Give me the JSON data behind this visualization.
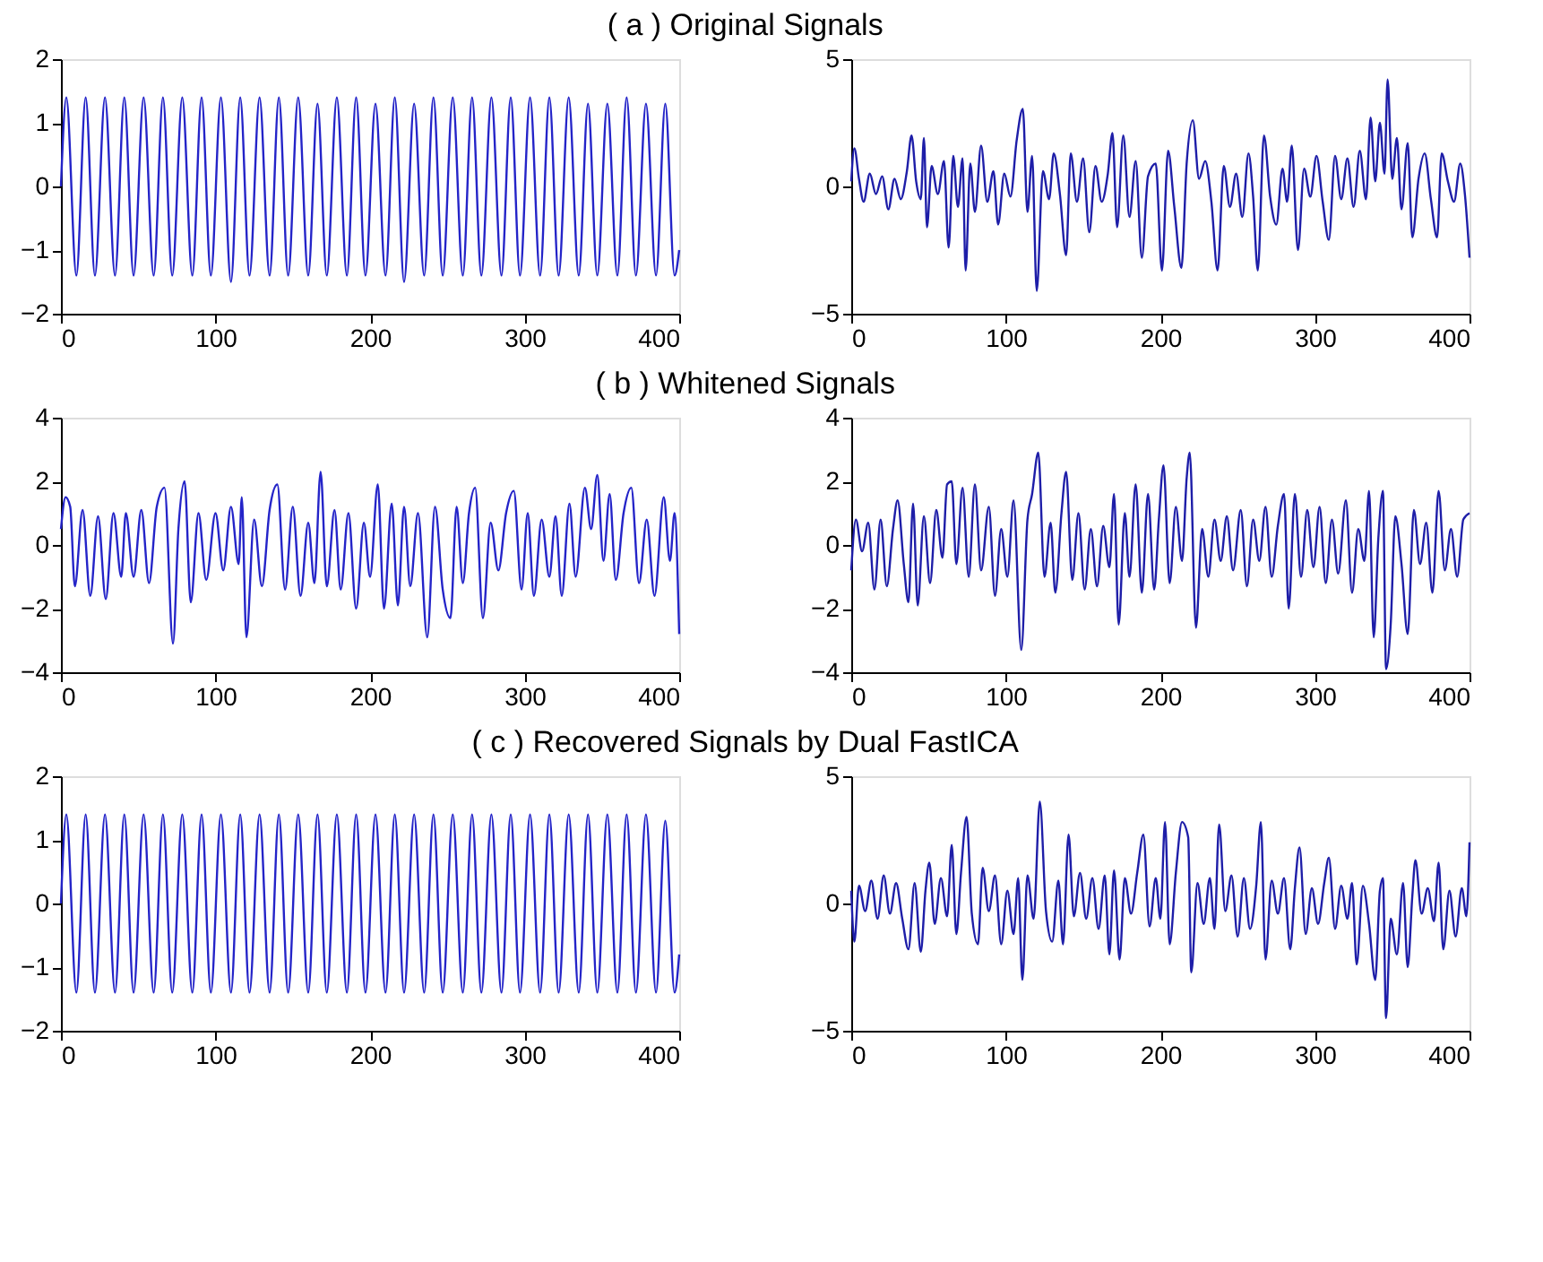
{
  "chart_data": [
    {
      "type": "line",
      "title": "( a ) Original Signals",
      "color": "#2424c8",
      "xlim": [
        0,
        400
      ],
      "ylim": [
        -2,
        2
      ],
      "xticks": [
        0,
        100,
        200,
        300,
        400
      ],
      "yticks": [
        -2,
        -1,
        0,
        1,
        2
      ],
      "x": [
        0,
        3.5,
        10,
        16,
        22,
        28.5,
        35,
        41,
        47,
        53.5,
        60,
        66,
        72,
        78.5,
        85,
        91,
        97,
        103.5,
        110,
        116,
        122,
        128.5,
        135,
        141,
        147,
        153.5,
        160,
        166,
        172,
        178.5,
        185,
        191,
        197,
        203.5,
        210,
        216,
        222,
        228.5,
        235,
        241,
        247,
        253.5,
        260,
        266,
        272,
        278.5,
        285,
        291,
        297,
        303.5,
        310,
        316,
        322,
        328.5,
        335,
        341,
        347,
        353.5,
        360,
        366,
        372,
        378.5,
        385,
        391,
        397,
        400
      ],
      "values": [
        0,
        1.4,
        -1.4,
        1.4,
        -1.4,
        1.4,
        -1.4,
        1.4,
        -1.4,
        1.4,
        -1.4,
        1.4,
        -1.4,
        1.4,
        -1.4,
        1.4,
        -1.4,
        1.4,
        -1.5,
        1.4,
        -1.4,
        1.4,
        -1.4,
        1.4,
        -1.4,
        1.4,
        -1.4,
        1.3,
        -1.4,
        1.4,
        -1.4,
        1.4,
        -1.4,
        1.3,
        -1.4,
        1.4,
        -1.5,
        1.3,
        -1.4,
        1.4,
        -1.4,
        1.4,
        -1.4,
        1.4,
        -1.4,
        1.4,
        -1.4,
        1.4,
        -1.4,
        1.4,
        -1.4,
        1.4,
        -1.4,
        1.4,
        -1.4,
        1.3,
        -1.4,
        1.3,
        -1.4,
        1.4,
        -1.4,
        1.3,
        -1.4,
        1.3,
        -1.4,
        -1.0
      ]
    },
    {
      "type": "line",
      "color": "#1e1ea8",
      "xlim": [
        0,
        400
      ],
      "ylim": [
        -5,
        5
      ],
      "xticks": [
        0,
        100,
        200,
        300,
        400
      ],
      "yticks": [
        -5,
        0,
        5
      ],
      "x": [
        0,
        2,
        5,
        8,
        12,
        16,
        20,
        24,
        28,
        32,
        36,
        39,
        42,
        45,
        47,
        49,
        52,
        56,
        60,
        63,
        66,
        69,
        72,
        74,
        77,
        80,
        84,
        88,
        92,
        95,
        99,
        103,
        107,
        111,
        114,
        117,
        120,
        124,
        128,
        131,
        135,
        139,
        142,
        146,
        150,
        154,
        158,
        162,
        166,
        169,
        172,
        176,
        180,
        184,
        188,
        192,
        197,
        201,
        205,
        209,
        213.6,
        217,
        221,
        225,
        229,
        233,
        237,
        241,
        245,
        249,
        253,
        257,
        260,
        263,
        267,
        271,
        275,
        279,
        282,
        285,
        289,
        293,
        297,
        301,
        305,
        309,
        313,
        317,
        321,
        325,
        329,
        333,
        336,
        339,
        342,
        345,
        347,
        350,
        353,
        356,
        360,
        363,
        367,
        371,
        375,
        379,
        382,
        386,
        390,
        394,
        397,
        400
      ],
      "values": [
        0.2,
        1.5,
        0.3,
        -0.6,
        0.5,
        -0.3,
        0.4,
        -0.9,
        0.3,
        -0.5,
        0.6,
        2.0,
        0.2,
        -0.5,
        1.9,
        -1.6,
        0.8,
        -0.3,
        1.0,
        -2.4,
        1.2,
        -0.8,
        1.1,
        -3.3,
        0.9,
        -1.0,
        1.6,
        -0.6,
        0.6,
        -1.5,
        0.5,
        -0.4,
        1.8,
        3.05,
        -1.0,
        1.2,
        -4.1,
        0.6,
        -0.5,
        1.3,
        -0.3,
        -2.7,
        1.3,
        -0.6,
        1.1,
        -1.8,
        0.8,
        -0.6,
        0.5,
        2.1,
        -1.6,
        2.0,
        -1.2,
        1.0,
        -2.8,
        0.4,
        0.9,
        -3.3,
        1.4,
        -0.8,
        -3.2,
        0.9,
        2.6,
        0.3,
        1.0,
        -0.6,
        -3.3,
        0.8,
        -0.8,
        0.5,
        -1.2,
        1.3,
        -0.4,
        -3.3,
        2.0,
        -0.4,
        -1.5,
        0.7,
        -0.6,
        1.6,
        -2.5,
        0.7,
        -0.4,
        1.2,
        -0.6,
        -2.1,
        1.2,
        -0.5,
        1.1,
        -0.8,
        1.4,
        -0.5,
        2.7,
        0.2,
        2.5,
        0.5,
        4.2,
        0.3,
        1.9,
        -0.9,
        1.7,
        -2.0,
        0.3,
        1.3,
        -0.5,
        -2.0,
        1.3,
        0.2,
        -0.6,
        0.9,
        -0.3,
        -2.8
      ]
    },
    {
      "type": "line",
      "title": "( b ) Whitened Signals",
      "color": "#2424c8",
      "xlim": [
        0,
        400
      ],
      "ylim": [
        -4,
        4
      ],
      "xticks": [
        0,
        100,
        200,
        300,
        400
      ],
      "yticks": [
        -4,
        -2,
        0,
        2,
        4
      ],
      "x": [
        0,
        3,
        6,
        9,
        14,
        19,
        24,
        29,
        34,
        39,
        42,
        47,
        52,
        57,
        62,
        67,
        72.5,
        76,
        80,
        84,
        89,
        94,
        100,
        105,
        110,
        115,
        117,
        120,
        125,
        130,
        135,
        140,
        145,
        150,
        155,
        160,
        164,
        168,
        172,
        177,
        181,
        186,
        191,
        196,
        200,
        205,
        209,
        214,
        218,
        222,
        226,
        231,
        237,
        242,
        247,
        252,
        256,
        260,
        264,
        268,
        273,
        278,
        283,
        288,
        293,
        298,
        302,
        306,
        311,
        316,
        320,
        324,
        329,
        333,
        339,
        343,
        347,
        351,
        355,
        359,
        364,
        369,
        374,
        379,
        384,
        390,
        394,
        397,
        400
      ],
      "values": [
        0.5,
        1.5,
        1.2,
        -1.3,
        1.1,
        -1.6,
        0.9,
        -1.7,
        1.0,
        -1.0,
        1.0,
        -1.0,
        1.1,
        -1.2,
        1.2,
        1.8,
        -3.1,
        0.5,
        2.0,
        -1.8,
        1.0,
        -1.1,
        1.0,
        -0.8,
        1.2,
        -0.6,
        1.5,
        -2.9,
        0.8,
        -1.3,
        1.1,
        1.9,
        -1.4,
        1.2,
        -1.6,
        0.7,
        -1.2,
        2.3,
        -1.3,
        1.1,
        -1.4,
        1.0,
        -2.0,
        0.7,
        -1.0,
        1.9,
        -2.0,
        1.3,
        -1.9,
        1.2,
        -1.3,
        1.0,
        -2.9,
        1.2,
        -1.4,
        -2.3,
        1.2,
        -1.2,
        1.0,
        1.8,
        -2.3,
        0.7,
        -0.8,
        1.0,
        1.7,
        -1.4,
        1.0,
        -1.6,
        0.8,
        -1.0,
        0.9,
        -1.6,
        1.3,
        -1.0,
        1.8,
        0.5,
        2.2,
        -0.5,
        1.6,
        -1.1,
        1.0,
        1.8,
        -1.2,
        0.8,
        -1.6,
        1.5,
        -0.5,
        1.0,
        -2.8
      ]
    },
    {
      "type": "line",
      "color": "#1e1ea8",
      "xlim": [
        0,
        400
      ],
      "ylim": [
        -4,
        4
      ],
      "xticks": [
        0,
        100,
        200,
        300,
        400
      ],
      "yticks": [
        -4,
        -2,
        0,
        2,
        4
      ],
      "x": [
        0,
        3,
        7,
        11,
        15,
        19,
        23,
        27,
        30,
        34,
        37,
        40,
        43,
        47,
        51,
        55,
        59,
        62,
        65,
        68,
        72,
        76,
        80,
        84,
        89,
        93,
        97,
        101,
        105,
        110,
        114,
        117,
        121,
        125,
        129,
        132,
        136,
        139,
        143,
        147,
        151,
        155,
        159,
        163,
        167,
        170,
        173,
        177,
        180,
        184,
        188,
        192,
        196,
        199,
        202,
        206,
        210,
        214,
        217,
        219,
        223,
        227,
        231,
        235,
        239,
        243,
        247,
        252,
        256,
        260,
        264,
        268,
        272,
        276,
        280,
        283,
        287,
        291,
        295,
        299,
        303,
        307,
        311,
        315,
        320,
        324,
        328,
        332,
        335,
        338,
        341,
        344,
        346,
        349,
        352,
        356,
        360,
        364,
        368,
        372,
        376,
        380,
        384,
        388,
        392,
        396,
        400
      ],
      "values": [
        -0.8,
        0.8,
        -0.2,
        0.7,
        -1.4,
        0.8,
        -1.3,
        0.5,
        1.4,
        -0.6,
        -1.8,
        1.3,
        -1.9,
        0.9,
        -1.2,
        1.1,
        -0.4,
        1.9,
        2.0,
        -0.6,
        1.8,
        -1.0,
        1.9,
        -0.8,
        1.2,
        -1.6,
        0.5,
        -1.0,
        1.4,
        -3.3,
        0.8,
        1.6,
        2.9,
        -1.0,
        0.7,
        -1.5,
        1.0,
        2.3,
        -1.1,
        1.0,
        -1.4,
        0.5,
        -1.3,
        0.6,
        -0.7,
        1.6,
        -2.5,
        1.0,
        -1.0,
        1.9,
        -1.5,
        1.6,
        -1.4,
        0.8,
        2.5,
        -1.2,
        1.2,
        -0.5,
        2.1,
        2.9,
        -2.6,
        0.5,
        -1.0,
        0.8,
        -0.5,
        0.9,
        -0.8,
        1.1,
        -1.3,
        0.8,
        -0.5,
        1.2,
        -1.0,
        0.6,
        1.6,
        -2.0,
        1.6,
        -1.0,
        1.1,
        -0.7,
        1.2,
        -1.2,
        0.8,
        -0.9,
        1.4,
        -1.5,
        0.5,
        -0.5,
        1.7,
        -2.9,
        0.2,
        1.7,
        -3.9,
        -2.5,
        0.9,
        -0.6,
        -2.8,
        1.1,
        -0.6,
        0.7,
        -1.5,
        1.7,
        -0.8,
        0.5,
        -1.0,
        0.8,
        1.0
      ]
    },
    {
      "type": "line",
      "title": "( c ) Recovered Signals by Dual FastICA",
      "color": "#2424c8",
      "xlim": [
        0,
        400
      ],
      "ylim": [
        -2,
        2
      ],
      "xticks": [
        0,
        100,
        200,
        300,
        400
      ],
      "yticks": [
        -2,
        -1,
        0,
        1,
        2
      ],
      "x": [
        0,
        3.5,
        10,
        16,
        22,
        28.5,
        35,
        41,
        47,
        53.5,
        60,
        66,
        72,
        78.5,
        85,
        91,
        97,
        103.5,
        110,
        116,
        122,
        128.5,
        135,
        141,
        147,
        153.5,
        160,
        166,
        172,
        178.5,
        185,
        191,
        197,
        203.5,
        210,
        216,
        222,
        228.5,
        235,
        241,
        247,
        253.5,
        260,
        266,
        272,
        278.5,
        285,
        291,
        297,
        303.5,
        310,
        316,
        322,
        328.5,
        335,
        341,
        347,
        353.5,
        360,
        366,
        372,
        378.5,
        385,
        391,
        397,
        400
      ],
      "values": [
        0,
        1.4,
        -1.4,
        1.4,
        -1.4,
        1.4,
        -1.4,
        1.4,
        -1.4,
        1.4,
        -1.4,
        1.4,
        -1.4,
        1.4,
        -1.4,
        1.4,
        -1.4,
        1.4,
        -1.4,
        1.4,
        -1.4,
        1.4,
        -1.4,
        1.4,
        -1.4,
        1.4,
        -1.4,
        1.4,
        -1.4,
        1.4,
        -1.4,
        1.4,
        -1.4,
        1.4,
        -1.4,
        1.4,
        -1.4,
        1.4,
        -1.4,
        1.4,
        -1.4,
        1.4,
        -1.4,
        1.4,
        -1.4,
        1.4,
        -1.4,
        1.4,
        -1.4,
        1.4,
        -1.4,
        1.4,
        -1.4,
        1.4,
        -1.4,
        1.4,
        -1.4,
        1.4,
        -1.4,
        1.4,
        -1.4,
        1.4,
        -1.4,
        1.3,
        -1.4,
        -0.8
      ]
    },
    {
      "type": "line",
      "color": "#1e1ea8",
      "xlim": [
        0,
        400
      ],
      "ylim": [
        -5,
        5
      ],
      "xticks": [
        0,
        100,
        200,
        300,
        400
      ],
      "yticks": [
        -5,
        0,
        5
      ],
      "x": [
        0,
        2,
        5,
        9,
        13,
        17,
        21,
        25,
        29,
        33,
        37,
        41,
        45,
        48,
        50.5,
        54,
        58,
        62,
        65,
        68,
        71,
        74.6,
        78,
        82,
        85,
        89,
        93,
        97,
        101,
        105,
        108,
        110.7,
        114,
        118,
        122,
        126,
        130,
        134,
        137,
        140.6,
        144,
        148,
        152,
        156,
        160,
        164,
        167,
        170,
        173.6,
        177,
        181,
        185,
        189,
        193,
        197,
        200,
        203,
        206,
        210,
        214,
        218,
        220,
        224,
        228,
        232,
        235,
        238,
        242,
        246,
        250,
        254,
        258,
        262,
        265,
        268,
        272,
        276,
        280,
        284,
        287,
        290,
        294,
        298,
        302,
        306,
        309,
        313,
        317,
        321,
        324,
        327,
        331,
        335,
        339,
        342,
        344,
        346,
        349,
        353,
        357,
        360,
        363,
        365,
        369,
        373,
        377,
        380,
        383,
        387,
        391,
        395,
        398,
        400
      ],
      "values": [
        0.5,
        -1.5,
        0.7,
        -0.3,
        0.9,
        -0.6,
        1.1,
        -0.4,
        0.8,
        -0.6,
        -1.8,
        0.8,
        -1.9,
        0.5,
        1.6,
        -0.8,
        1.0,
        -0.5,
        2.3,
        -1.2,
        1.2,
        3.4,
        -0.4,
        -1.6,
        1.4,
        -0.3,
        1.1,
        -1.6,
        0.5,
        -1.2,
        1.0,
        -3.0,
        1.1,
        -0.6,
        4.0,
        -0.3,
        -1.5,
        0.9,
        -1.6,
        2.7,
        -0.5,
        1.2,
        -0.6,
        1.0,
        -1.0,
        1.1,
        -2.0,
        1.3,
        -2.2,
        1.0,
        -0.4,
        1.2,
        2.7,
        -0.9,
        1.0,
        -0.6,
        3.2,
        -1.6,
        1.2,
        3.2,
        2.6,
        -2.7,
        0.8,
        -0.8,
        1.0,
        -1.0,
        3.1,
        -0.3,
        1.1,
        -1.3,
        1.0,
        -1.0,
        0.7,
        3.2,
        -2.2,
        0.9,
        -0.4,
        1.0,
        -1.8,
        0.6,
        2.2,
        -1.2,
        0.6,
        -0.8,
        0.8,
        1.8,
        -1.0,
        0.7,
        -0.6,
        0.8,
        -2.4,
        0.7,
        -0.8,
        -3.0,
        0.5,
        1.0,
        -4.5,
        -0.6,
        -2.0,
        0.8,
        -2.5,
        0.3,
        1.7,
        -0.4,
        0.6,
        -0.7,
        1.6,
        -1.8,
        0.5,
        -1.3,
        0.6,
        -0.5,
        2.4
      ]
    }
  ]
}
